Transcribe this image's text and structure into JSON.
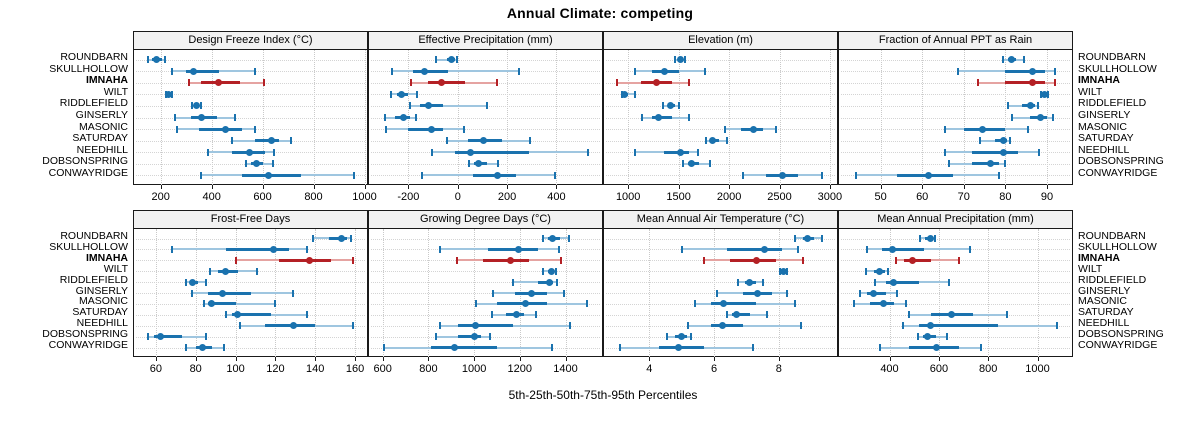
{
  "title": "Annual Climate: competing",
  "caption": "5th-25th-50th-75th-95th Percentiles",
  "sites": [
    "ROUNDBARN",
    "SKULLHOLLOW",
    "IMNAHA",
    "WILT",
    "RIDDLEFIELD",
    "GINSERLY",
    "MASONIC",
    "SATURDAY",
    "NEEDHILL",
    "DOBSONSPRING",
    "CONWAYRIDGE"
  ],
  "highlight_site": "IMNAHA",
  "colors": {
    "series_blue": "#1a72ae",
    "series_blue_light": "#9fc6e0",
    "highlight_red": "#b42025",
    "highlight_red_light": "#e5a3a1",
    "header_bg": "#f2f2f2",
    "panel_border": "#1a1a1a",
    "grid": "#c9c9c9"
  },
  "chart_data": [
    {
      "type": "dotplot-percentiles",
      "title": "Design Freeze Index (°C)",
      "row": 0,
      "col": 0,
      "percentiles": [
        "5th",
        "25th",
        "50th",
        "75th",
        "95th"
      ],
      "xlim": [
        95,
        1010
      ],
      "ticks": [
        200,
        400,
        600,
        800,
        1000
      ],
      "series": [
        {
          "site": "ROUNDBARN",
          "values": [
            150,
            165,
            185,
            205,
            215
          ]
        },
        {
          "site": "SKULLHOLLOW",
          "values": [
            245,
            300,
            330,
            430,
            570
          ]
        },
        {
          "site": "IMNAHA",
          "values": [
            310,
            360,
            425,
            510,
            605
          ]
        },
        {
          "site": "WILT",
          "values": [
            220,
            226,
            231,
            238,
            245
          ]
        },
        {
          "site": "RIDDLEFIELD",
          "values": [
            322,
            333,
            340,
            350,
            360
          ]
        },
        {
          "site": "GINSERLY",
          "values": [
            255,
            320,
            360,
            420,
            490
          ]
        },
        {
          "site": "MASONIC",
          "values": [
            265,
            350,
            455,
            520,
            570
          ]
        },
        {
          "site": "SATURDAY",
          "values": [
            480,
            570,
            635,
            665,
            710
          ]
        },
        {
          "site": "NEEDHILL",
          "values": [
            385,
            480,
            550,
            610,
            645
          ]
        },
        {
          "site": "DOBSONSPRING",
          "values": [
            535,
            555,
            575,
            600,
            640
          ]
        },
        {
          "site": "CONWAYRIDGE",
          "values": [
            360,
            520,
            625,
            750,
            960
          ]
        }
      ]
    },
    {
      "type": "dotplot-percentiles",
      "title": "Effective Precipitation (mm)",
      "row": 0,
      "col": 1,
      "percentiles": [
        "5th",
        "25th",
        "50th",
        "75th",
        "95th"
      ],
      "xlim": [
        -360,
        585
      ],
      "ticks": [
        -200,
        0,
        200,
        400
      ],
      "series": [
        {
          "site": "ROUNDBARN",
          "values": [
            -90,
            -45,
            -25,
            -10,
            -5
          ]
        },
        {
          "site": "SKULLHOLLOW",
          "values": [
            -265,
            -180,
            -135,
            -40,
            250
          ]
        },
        {
          "site": "IMNAHA",
          "values": [
            -190,
            -120,
            -65,
            30,
            160
          ]
        },
        {
          "site": "WILT",
          "values": [
            -270,
            -245,
            -228,
            -200,
            -165
          ]
        },
        {
          "site": "RIDDLEFIELD",
          "values": [
            -195,
            -155,
            -120,
            -60,
            120
          ]
        },
        {
          "site": "GINSERLY",
          "values": [
            -295,
            -255,
            -220,
            -195,
            -170
          ]
        },
        {
          "site": "MASONIC",
          "values": [
            -290,
            -200,
            -105,
            -60,
            25
          ]
        },
        {
          "site": "SATURDAY",
          "values": [
            -45,
            40,
            105,
            180,
            295
          ]
        },
        {
          "site": "NEEDHILL",
          "values": [
            -105,
            -10,
            50,
            290,
            530
          ]
        },
        {
          "site": "DOBSONSPRING",
          "values": [
            45,
            65,
            85,
            120,
            165
          ]
        },
        {
          "site": "CONWAYRIDGE",
          "values": [
            -145,
            60,
            160,
            235,
            395
          ]
        }
      ]
    },
    {
      "type": "dotplot-percentiles",
      "title": "Elevation (m)",
      "row": 0,
      "col": 2,
      "percentiles": [
        "5th",
        "25th",
        "50th",
        "75th",
        "95th"
      ],
      "xlim": [
        760,
        3070
      ],
      "ticks": [
        1000,
        1500,
        2000,
        2500,
        3000
      ],
      "series": [
        {
          "site": "ROUNDBARN",
          "values": [
            1460,
            1495,
            1520,
            1545,
            1565
          ]
        },
        {
          "site": "SKULLHOLLOW",
          "values": [
            1065,
            1240,
            1355,
            1500,
            1765
          ]
        },
        {
          "site": "IMNAHA",
          "values": [
            890,
            1130,
            1280,
            1430,
            1600
          ]
        },
        {
          "site": "WILT",
          "values": [
            940,
            950,
            965,
            1000,
            1065
          ]
        },
        {
          "site": "RIDDLEFIELD",
          "values": [
            1345,
            1390,
            1420,
            1460,
            1505
          ]
        },
        {
          "site": "GINSERLY",
          "values": [
            1140,
            1240,
            1305,
            1430,
            1600
          ]
        },
        {
          "site": "MASONIC",
          "values": [
            1955,
            2120,
            2245,
            2340,
            2465
          ]
        },
        {
          "site": "SATURDAY",
          "values": [
            1775,
            1810,
            1840,
            1900,
            1980
          ]
        },
        {
          "site": "NEEDHILL",
          "values": [
            1065,
            1350,
            1515,
            1600,
            1690
          ]
        },
        {
          "site": "DOBSONSPRING",
          "values": [
            1545,
            1590,
            1630,
            1700,
            1815
          ]
        },
        {
          "site": "CONWAYRIDGE",
          "values": [
            2135,
            2370,
            2530,
            2680,
            2925
          ]
        }
      ]
    },
    {
      "type": "dotplot-percentiles",
      "title": "Fraction of Annual PPT as Rain",
      "row": 0,
      "col": 3,
      "percentiles": [
        "5th",
        "25th",
        "50th",
        "75th",
        "95th"
      ],
      "xlim": [
        40,
        96
      ],
      "ticks": [
        50,
        60,
        70,
        80,
        90
      ],
      "series": [
        {
          "site": "ROUNDBARN",
          "values": [
            79.5,
            80.5,
            81.5,
            82.5,
            84.5
          ]
        },
        {
          "site": "SKULLHOLLOW",
          "values": [
            68.5,
            80,
            86.5,
            89.5,
            92
          ]
        },
        {
          "site": "IMNAHA",
          "values": [
            73.5,
            80,
            86.5,
            89.5,
            92
          ]
        },
        {
          "site": "WILT",
          "values": [
            88.5,
            89,
            89.5,
            89.8,
            90.2
          ]
        },
        {
          "site": "RIDDLEFIELD",
          "values": [
            80.5,
            84,
            86,
            87,
            87.8
          ]
        },
        {
          "site": "GINSERLY",
          "values": [
            81.5,
            86,
            88.5,
            90,
            91.5
          ]
        },
        {
          "site": "MASONIC",
          "values": [
            65.5,
            70,
            74.5,
            80,
            85.5
          ]
        },
        {
          "site": "SATURDAY",
          "values": [
            74,
            77.5,
            79.5,
            80.3,
            81.2
          ]
        },
        {
          "site": "NEEDHILL",
          "values": [
            65.5,
            72,
            79.5,
            83,
            88
          ]
        },
        {
          "site": "DOBSONSPRING",
          "values": [
            66.5,
            72,
            76.5,
            78.5,
            80
          ]
        },
        {
          "site": "CONWAYRIDGE",
          "values": [
            44,
            54,
            61.5,
            67.5,
            78.5
          ]
        }
      ]
    },
    {
      "type": "dotplot-percentiles",
      "title": "Frost-Free Days",
      "row": 1,
      "col": 0,
      "percentiles": [
        "5th",
        "25th",
        "50th",
        "75th",
        "95th"
      ],
      "xlim": [
        49,
        166
      ],
      "ticks": [
        60,
        80,
        100,
        120,
        140,
        160
      ],
      "series": [
        {
          "site": "ROUNDBARN",
          "values": [
            139,
            147,
            153,
            156,
            158
          ]
        },
        {
          "site": "SKULLHOLLOW",
          "values": [
            68,
            95,
            119,
            127,
            136
          ]
        },
        {
          "site": "IMNAHA",
          "values": [
            100,
            122,
            137,
            148,
            159
          ]
        },
        {
          "site": "WILT",
          "values": [
            87,
            91,
            95,
            101,
            111
          ]
        },
        {
          "site": "RIDDLEFIELD",
          "values": [
            75,
            77,
            78.5,
            81,
            85
          ]
        },
        {
          "site": "GINSERLY",
          "values": [
            78,
            86,
            93.5,
            108,
            129
          ]
        },
        {
          "site": "MASONIC",
          "values": [
            84,
            86,
            88,
            100,
            120
          ]
        },
        {
          "site": "SATURDAY",
          "values": [
            95,
            98,
            101,
            118,
            136
          ]
        },
        {
          "site": "NEEDHILL",
          "values": [
            102,
            115,
            129,
            140,
            159
          ]
        },
        {
          "site": "DOBSONSPRING",
          "values": [
            56,
            59,
            62.5,
            73,
            85
          ]
        },
        {
          "site": "CONWAYRIDGE",
          "values": [
            75,
            80,
            83.5,
            88,
            94
          ]
        }
      ]
    },
    {
      "type": "dotplot-percentiles",
      "title": "Growing Degree Days (°C)",
      "row": 1,
      "col": 1,
      "percentiles": [
        "5th",
        "25th",
        "50th",
        "75th",
        "95th"
      ],
      "xlim": [
        540,
        1560
      ],
      "ticks": [
        600,
        800,
        1000,
        1200,
        1400
      ],
      "series": [
        {
          "site": "ROUNDBARN",
          "values": [
            1300,
            1325,
            1345,
            1375,
            1415
          ]
        },
        {
          "site": "SKULLHOLLOW",
          "values": [
            850,
            1060,
            1195,
            1280,
            1370
          ]
        },
        {
          "site": "IMNAHA",
          "values": [
            925,
            1040,
            1160,
            1240,
            1380
          ]
        },
        {
          "site": "WILT",
          "values": [
            1300,
            1325,
            1340,
            1350,
            1360
          ]
        },
        {
          "site": "RIDDLEFIELD",
          "values": [
            1170,
            1280,
            1330,
            1345,
            1365
          ]
        },
        {
          "site": "GINSERLY",
          "values": [
            1085,
            1180,
            1250,
            1320,
            1395
          ]
        },
        {
          "site": "MASONIC",
          "values": [
            1010,
            1100,
            1225,
            1320,
            1495
          ]
        },
        {
          "site": "SATURDAY",
          "values": [
            1080,
            1140,
            1185,
            1220,
            1270
          ]
        },
        {
          "site": "NEEDHILL",
          "values": [
            850,
            930,
            1005,
            1170,
            1420
          ]
        },
        {
          "site": "DOBSONSPRING",
          "values": [
            835,
            930,
            1000,
            1030,
            1070
          ]
        },
        {
          "site": "CONWAYRIDGE",
          "values": [
            605,
            810,
            915,
            1100,
            1340
          ]
        }
      ]
    },
    {
      "type": "dotplot-percentiles",
      "title": "Mean Annual Air Temperature (°C)",
      "row": 1,
      "col": 2,
      "percentiles": [
        "5th",
        "25th",
        "50th",
        "75th",
        "95th"
      ],
      "xlim": [
        2.6,
        9.8
      ],
      "ticks": [
        4,
        6,
        8
      ],
      "series": [
        {
          "site": "ROUNDBARN",
          "values": [
            8.5,
            8.75,
            8.9,
            9.1,
            9.35
          ]
        },
        {
          "site": "SKULLHOLLOW",
          "values": [
            5.0,
            6.4,
            7.55,
            8.1,
            8.6
          ]
        },
        {
          "site": "IMNAHA",
          "values": [
            5.7,
            6.5,
            7.3,
            7.9,
            8.75
          ]
        },
        {
          "site": "WILT",
          "values": [
            8.05,
            8.1,
            8.15,
            8.2,
            8.25
          ]
        },
        {
          "site": "RIDDLEFIELD",
          "values": [
            6.75,
            6.95,
            7.1,
            7.3,
            7.5
          ]
        },
        {
          "site": "GINSERLY",
          "values": [
            6.1,
            6.9,
            7.35,
            7.8,
            8.25
          ]
        },
        {
          "site": "MASONIC",
          "values": [
            5.4,
            5.9,
            6.3,
            7.3,
            8.5
          ]
        },
        {
          "site": "SATURDAY",
          "values": [
            6.4,
            6.55,
            6.7,
            7.1,
            7.65
          ]
        },
        {
          "site": "NEEDHILL",
          "values": [
            5.2,
            5.9,
            6.25,
            6.9,
            8.7
          ]
        },
        {
          "site": "DOBSONSPRING",
          "values": [
            4.55,
            4.8,
            5.0,
            5.15,
            5.3
          ]
        },
        {
          "site": "CONWAYRIDGE",
          "values": [
            3.1,
            4.3,
            4.9,
            5.7,
            7.2
          ]
        }
      ]
    },
    {
      "type": "dotplot-percentiles",
      "title": "Mean Annual Precipitation (mm)",
      "row": 1,
      "col": 3,
      "percentiles": [
        "5th",
        "25th",
        "50th",
        "75th",
        "95th"
      ],
      "xlim": [
        195,
        1140
      ],
      "ticks": [
        400,
        600,
        800,
        1000
      ],
      "series": [
        {
          "site": "ROUNDBARN",
          "values": [
            525,
            545,
            565,
            575,
            585
          ]
        },
        {
          "site": "SKULLHOLLOW",
          "values": [
            310,
            370,
            410,
            540,
            725
          ]
        },
        {
          "site": "IMNAHA",
          "values": [
            425,
            460,
            495,
            570,
            680
          ]
        },
        {
          "site": "WILT",
          "values": [
            305,
            335,
            360,
            380,
            395
          ]
        },
        {
          "site": "RIDDLEFIELD",
          "values": [
            340,
            385,
            415,
            520,
            640
          ]
        },
        {
          "site": "GINSERLY",
          "values": [
            280,
            310,
            335,
            385,
            430
          ]
        },
        {
          "site": "MASONIC",
          "values": [
            255,
            320,
            375,
            420,
            465
          ]
        },
        {
          "site": "SATURDAY",
          "values": [
            480,
            570,
            650,
            740,
            875
          ]
        },
        {
          "site": "NEEDHILL",
          "values": [
            455,
            520,
            565,
            840,
            1080
          ]
        },
        {
          "site": "DOBSONSPRING",
          "values": [
            515,
            535,
            555,
            590,
            635
          ]
        },
        {
          "site": "CONWAYRIDGE",
          "values": [
            360,
            480,
            590,
            680,
            770
          ]
        }
      ]
    }
  ]
}
